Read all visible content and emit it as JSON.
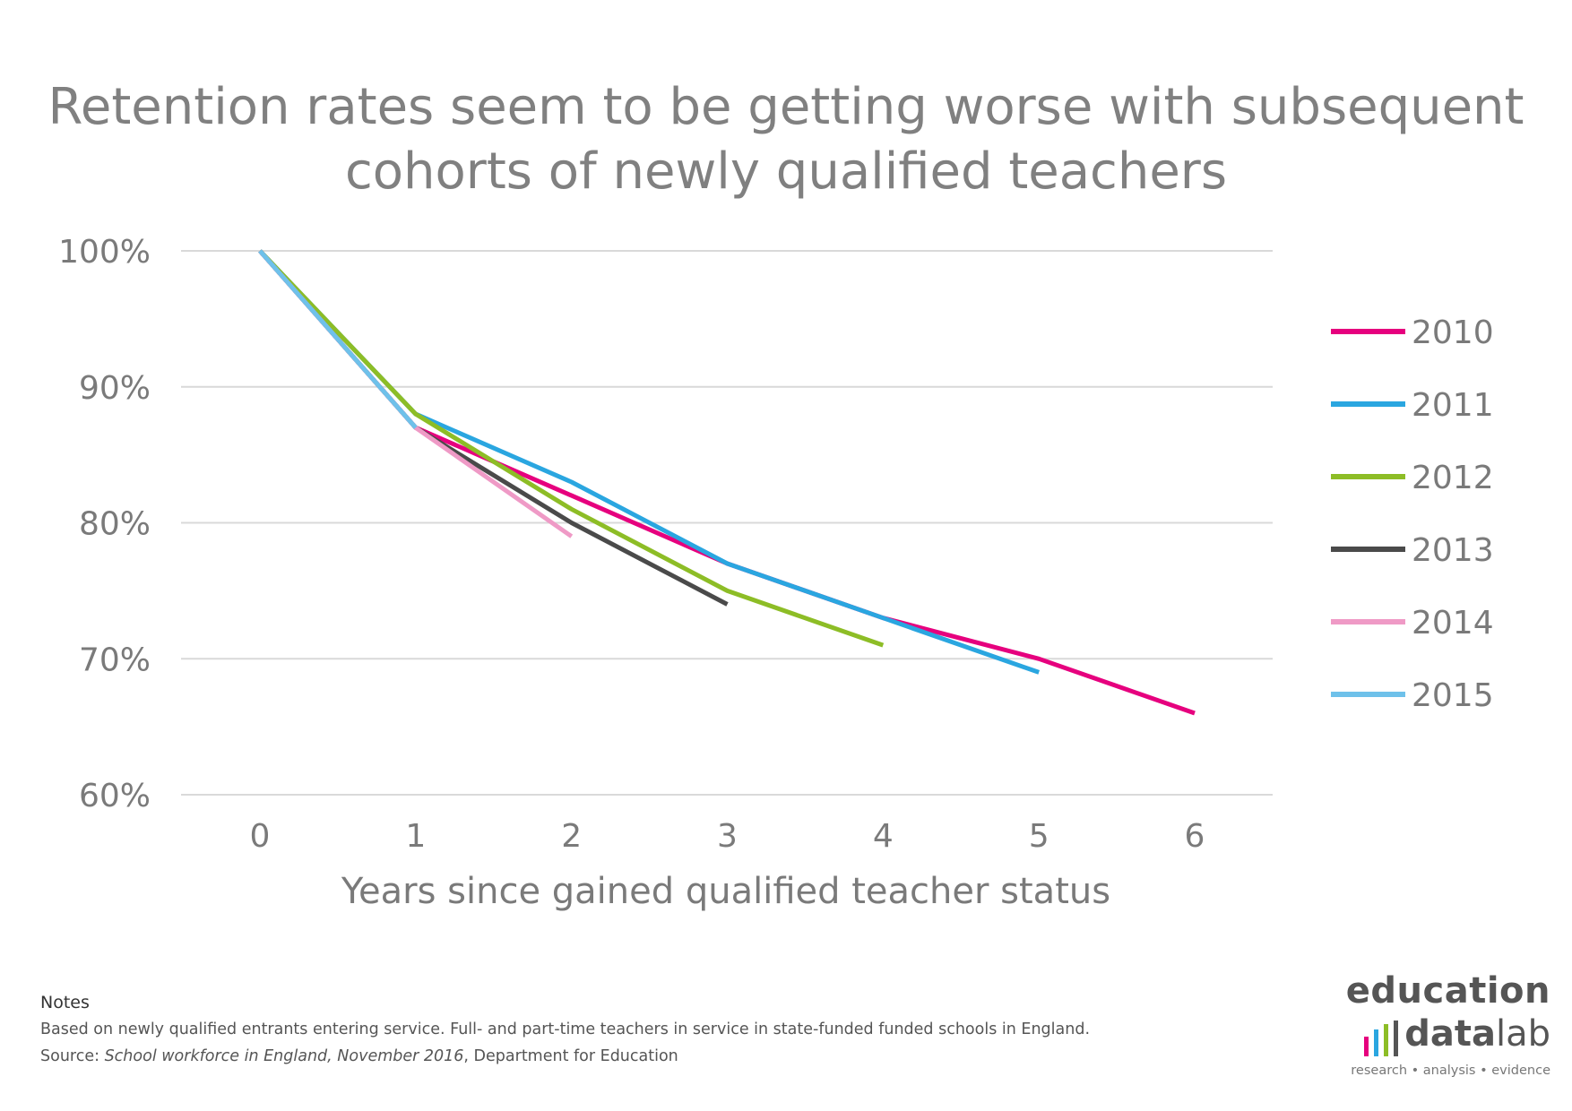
{
  "chart_data": {
    "type": "line",
    "title": "Retention rates seem to be getting worse with subsequent cohorts of newly qualified teachers",
    "xlabel": "Years since gained qualified teacher status",
    "ylabel": "",
    "x": [
      0,
      1,
      2,
      3,
      4,
      5,
      6
    ],
    "xlim": [
      0,
      6
    ],
    "ylim": [
      60,
      100
    ],
    "y_ticks": [
      {
        "value": 100,
        "label": "100%"
      },
      {
        "value": 90,
        "label": "90%"
      },
      {
        "value": 80,
        "label": "80%"
      },
      {
        "value": 70,
        "label": "70%"
      },
      {
        "value": 60,
        "label": "60%"
      }
    ],
    "x_ticks": [
      "0",
      "1",
      "2",
      "3",
      "4",
      "5",
      "6"
    ],
    "grid": true,
    "legend_position": "right",
    "series": [
      {
        "name": "2010",
        "color": "#e6007e",
        "values": [
          100,
          87,
          82,
          77,
          73,
          70,
          66
        ]
      },
      {
        "name": "2011",
        "color": "#2aa6e0",
        "values": [
          100,
          88,
          83,
          77,
          73,
          69,
          null
        ]
      },
      {
        "name": "2012",
        "color": "#8dbd26",
        "values": [
          100,
          88,
          81,
          75,
          71,
          null,
          null
        ]
      },
      {
        "name": "2013",
        "color": "#4a4a4a",
        "values": [
          100,
          87,
          80,
          74,
          null,
          null,
          null
        ]
      },
      {
        "name": "2014",
        "color": "#ef9ac6",
        "values": [
          100,
          87,
          79,
          null,
          null,
          null,
          null
        ]
      },
      {
        "name": "2015",
        "color": "#6ec1ea",
        "values": [
          100,
          87,
          null,
          null,
          null,
          null,
          null
        ]
      }
    ]
  },
  "notes": {
    "heading": "Notes",
    "line1": "Based on newly qualified entrants entering service. Full- and part-time teachers in service in state-funded funded schools in England.",
    "source_prefix": "Source: ",
    "source_title": "School workforce in England, November 2016",
    "source_suffix": ", Department for Education"
  },
  "logo": {
    "word_education": "education",
    "word_data": "data",
    "word_lab": "lab",
    "tagline": "research  •  analysis  •  evidence",
    "bar_colors": [
      "#e6007e",
      "#2aa6e0",
      "#8dbd26",
      "#555555"
    ]
  }
}
